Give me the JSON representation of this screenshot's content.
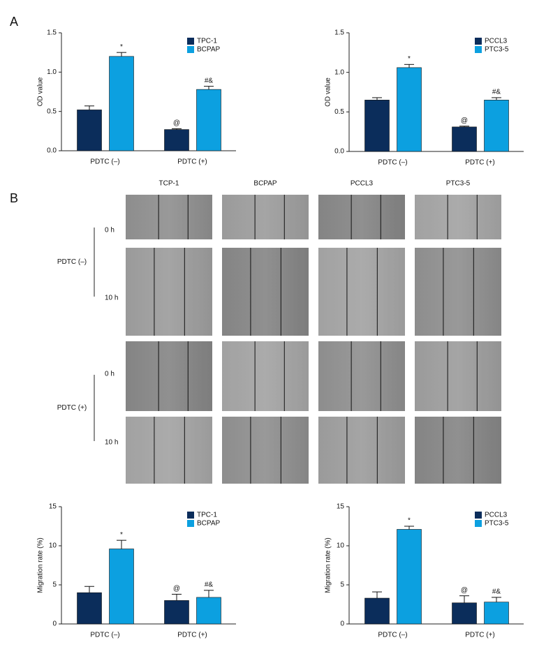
{
  "panel_labels": [
    "A",
    "B"
  ],
  "image_grid": {
    "columns": [
      "TCP-1",
      "BCPAP",
      "PCCL3",
      "PTC3-5"
    ],
    "row_groups": [
      {
        "label": "PDTC (–)",
        "rows": [
          "0 h",
          "10 h"
        ]
      },
      {
        "label": "PDTC (+)",
        "rows": [
          "0 h",
          "10 h"
        ]
      }
    ]
  },
  "chart_data": [
    {
      "type": "bar",
      "ylabel": "OD value",
      "categories": [
        "PDTC (–)",
        "PDTC (+)"
      ],
      "ylim": [
        0,
        1.5
      ],
      "yticks": [
        {
          "value": 0,
          "label": "0.0"
        },
        0.5,
        {
          "value": 1,
          "label": "1.0"
        },
        1.5
      ],
      "series": [
        {
          "name": "TPC-1",
          "color": "#0b2d5b",
          "values": [
            0.52,
            0.27
          ],
          "errors": [
            0.05,
            0.01
          ],
          "annotations": [
            null,
            "@"
          ]
        },
        {
          "name": "BCPAP",
          "color": "#0ca0e0",
          "values": [
            1.2,
            0.78
          ],
          "errors": [
            0.05,
            0.04
          ],
          "annotations": [
            "*",
            "#&"
          ]
        }
      ]
    },
    {
      "type": "bar",
      "ylabel": "OD value",
      "categories": [
        "PDTC (–)",
        "PDTC (+)"
      ],
      "ylim": [
        0,
        1.5
      ],
      "yticks": [
        {
          "value": 0,
          "label": "0.0"
        },
        0.5,
        {
          "value": 1,
          "label": "1.0"
        },
        1.5
      ],
      "series": [
        {
          "name": "PCCL3",
          "color": "#0b2d5b",
          "values": [
            0.65,
            0.31
          ],
          "errors": [
            0.03,
            0.01
          ],
          "annotations": [
            null,
            "@"
          ]
        },
        {
          "name": "PTC3-5",
          "color": "#0ca0e0",
          "values": [
            1.06,
            0.65
          ],
          "errors": [
            0.04,
            0.03
          ],
          "annotations": [
            "*",
            "#&"
          ]
        }
      ]
    },
    {
      "type": "bar",
      "ylabel": "Migration rate (%)",
      "categories": [
        "PDTC (–)",
        "PDTC (+)"
      ],
      "ylim": [
        0,
        15
      ],
      "yticks": [
        0,
        5,
        10,
        15
      ],
      "series": [
        {
          "name": "TPC-1",
          "color": "#0b2d5b",
          "values": [
            4.0,
            3.0
          ],
          "errors": [
            0.8,
            0.8
          ],
          "annotations": [
            null,
            "@"
          ]
        },
        {
          "name": "BCPAP",
          "color": "#0ca0e0",
          "values": [
            9.6,
            3.4
          ],
          "errors": [
            1.1,
            0.9
          ],
          "annotations": [
            "*",
            "#&"
          ]
        }
      ]
    },
    {
      "type": "bar",
      "ylabel": "Migration rate (%)",
      "categories": [
        "PDTC (–)",
        "PDTC (+)"
      ],
      "ylim": [
        0,
        15
      ],
      "yticks": [
        0,
        5,
        10,
        15
      ],
      "series": [
        {
          "name": "PCCL3",
          "color": "#0b2d5b",
          "values": [
            3.3,
            2.7
          ],
          "errors": [
            0.8,
            0.9
          ],
          "annotations": [
            null,
            "@"
          ]
        },
        {
          "name": "PTC3-5",
          "color": "#0ca0e0",
          "values": [
            12.1,
            2.8
          ],
          "errors": [
            0.4,
            0.6
          ],
          "annotations": [
            "*",
            "#&"
          ]
        }
      ]
    }
  ]
}
